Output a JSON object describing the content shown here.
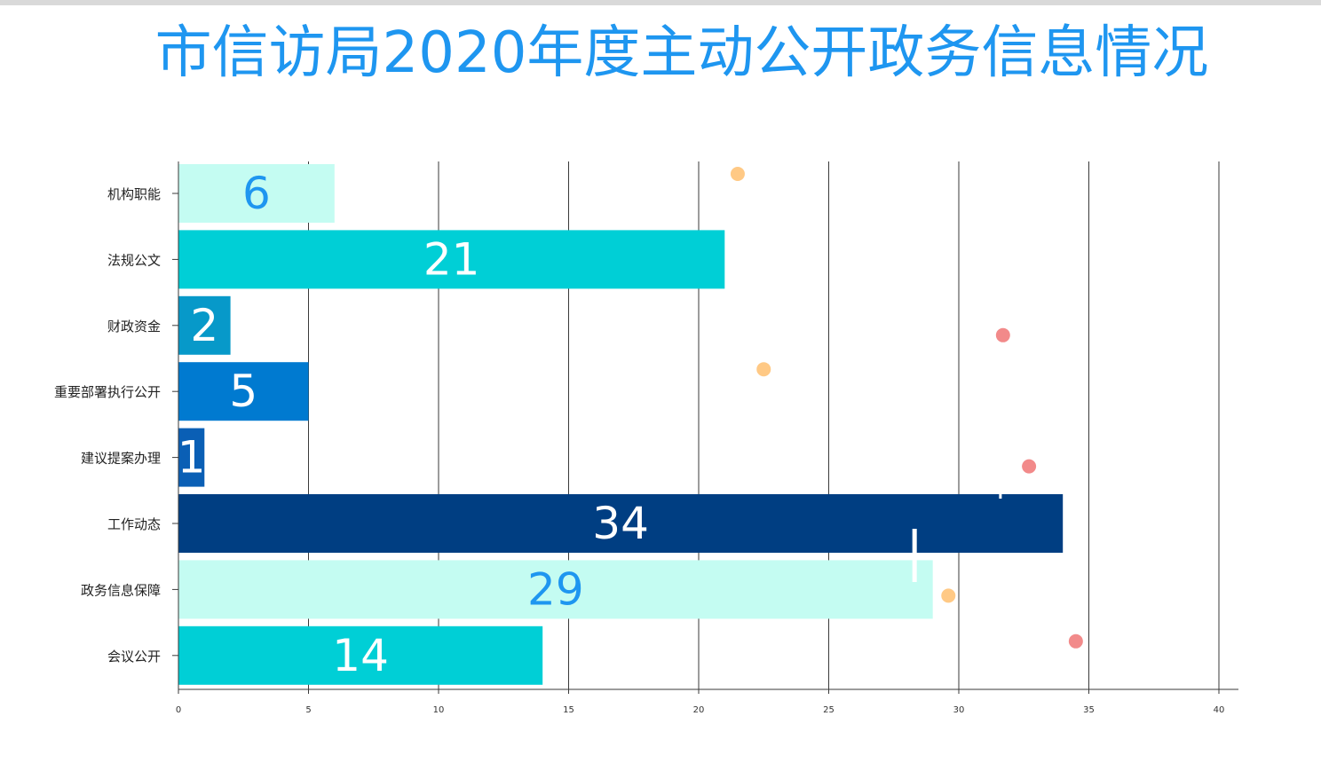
{
  "title": "市信访局2020年度主动公开政务信息情况",
  "chart_data": {
    "type": "bar",
    "orientation": "horizontal",
    "categories": [
      "机构职能",
      "法规公文",
      "财政资金",
      "重要部署执行公开",
      "建议提案办理",
      "工作动态",
      "政务信息保障",
      "会议公开"
    ],
    "values": [
      6,
      21,
      2,
      5,
      1,
      34,
      29,
      14
    ],
    "value_labels": [
      "6",
      "21",
      "2",
      "5",
      "1",
      "34",
      "29",
      "14"
    ],
    "bar_colors": [
      "#c4fcf2",
      "#00cfd6",
      "#0799c9",
      "#007ad0",
      "#0a5fb5",
      "#003e82",
      "#c4fcf2",
      "#00cfd6"
    ],
    "label_colors": [
      "#1e96f0",
      "#ffffff",
      "#ffffff",
      "#ffffff",
      "#ffffff",
      "#ffffff",
      "#1e96f0",
      "#ffffff"
    ],
    "xlim": [
      0,
      40
    ],
    "x_ticks": [
      "0",
      "5",
      "10",
      "15",
      "20",
      "25",
      "30",
      "35",
      "40"
    ],
    "xlabel": "",
    "ylabel": "",
    "grid": "vertical",
    "decorative_dots": [
      {
        "x": 21.5,
        "category": "机构职能",
        "color": "#ffc985"
      },
      {
        "x": 31.7,
        "category": "财政资金",
        "color": "#f28a8a"
      },
      {
        "x": 22.5,
        "category": "重要部署执行公开",
        "color": "#ffc985"
      },
      {
        "x": 32.7,
        "category": "建议提案办理",
        "color": "#f28a8a"
      },
      {
        "x": 29.6,
        "category": "政务信息保障",
        "color": "#ffc985"
      },
      {
        "x": 34.5,
        "category": "会议公开",
        "color": "#f28a8a"
      }
    ]
  }
}
